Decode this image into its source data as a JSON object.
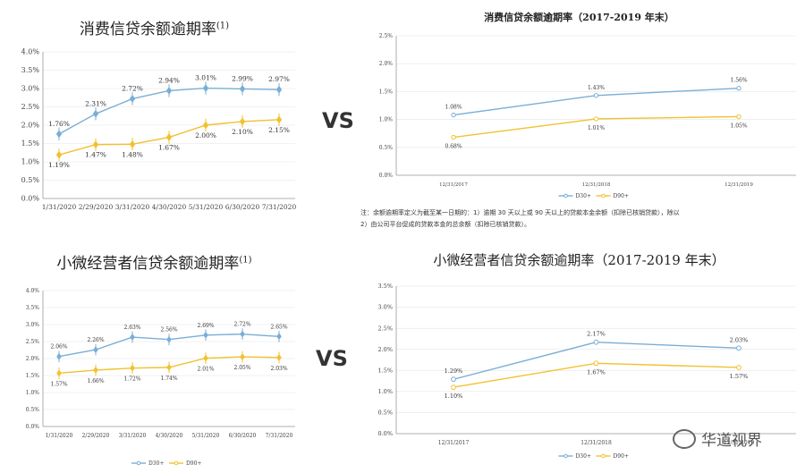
{
  "vs_label": "VS",
  "note": {
    "line1": "注：余额逾期率定义为截至某一日期的：1）逾期 30 天以上或 90 天以上的贷款本金余额（扣除已核销贷款），除以",
    "line2": "2）由公司平台促成的贷款本金的总余额（扣除已核销贷款）。"
  },
  "watermark": {
    "text": "华道视界",
    "icon": "wechat-icon"
  },
  "colors": {
    "d30": "#7aaed6",
    "d90": "#f2c12e",
    "axis": "#999999",
    "grid": "#e6e6e6"
  },
  "chart_data": [
    {
      "id": "c1",
      "type": "line",
      "title": "消费信贷余额逾期率",
      "title_sup": "(1)",
      "categories": [
        "1/31/2020",
        "2/29/2020",
        "3/31/2020",
        "4/30/2020",
        "5/31/2020",
        "6/30/2020",
        "7/31/2020"
      ],
      "yticks": [
        "0.0%",
        "0.5%",
        "1.0%",
        "1.5%",
        "2.0%",
        "2.5%",
        "3.0%",
        "3.5%",
        "4.0%"
      ],
      "ylim": [
        0,
        4
      ],
      "series": [
        {
          "key": "d30",
          "values": [
            1.76,
            2.31,
            2.72,
            2.94,
            3.01,
            2.99,
            2.97
          ],
          "labels": [
            "1.76%",
            "2.31%",
            "2.72%",
            "2.94%",
            "3.01%",
            "2.99%",
            "2.97%"
          ]
        },
        {
          "key": "d90",
          "values": [
            1.19,
            1.47,
            1.48,
            1.67,
            2.0,
            2.1,
            2.15
          ],
          "labels": [
            "1.19%",
            "1.47%",
            "1.48%",
            "1.67%",
            "2.00%",
            "2.10%",
            "2.15%"
          ]
        }
      ],
      "legend": []
    },
    {
      "id": "c2",
      "type": "line",
      "title": "消费信贷余额逾期率（2017-2019 年末）",
      "title_sup": "",
      "categories": [
        "12/31/2017",
        "12/31/2018",
        "12/31/2019"
      ],
      "yticks": [
        "0.0%",
        "0.5%",
        "1.0%",
        "1.5%",
        "2.0%",
        "2.5%"
      ],
      "ylim": [
        0,
        2.5
      ],
      "series": [
        {
          "key": "d30",
          "values": [
            1.08,
            1.43,
            1.56
          ],
          "labels": [
            "1.08%",
            "1.43%",
            "1.56%"
          ]
        },
        {
          "key": "d90",
          "values": [
            0.68,
            1.01,
            1.05
          ],
          "labels": [
            "0.68%",
            "1.01%",
            "1.05%"
          ]
        }
      ],
      "legend": [
        "D30+",
        "D90+"
      ]
    },
    {
      "id": "c3",
      "type": "line",
      "title": "小微经营者信贷余额逾期率",
      "title_sup": "(1)",
      "categories": [
        "1/31/2020",
        "2/29/2020",
        "3/31/2020",
        "4/30/2020",
        "5/31/2020",
        "6/30/2020",
        "7/31/2020"
      ],
      "yticks": [
        "0.0%",
        "0.5%",
        "1.0%",
        "1.5%",
        "2.0%",
        "2.5%",
        "3.0%",
        "3.5%",
        "4.0%"
      ],
      "ylim": [
        0,
        4
      ],
      "series": [
        {
          "key": "d30",
          "values": [
            2.06,
            2.26,
            2.63,
            2.56,
            2.69,
            2.72,
            2.65
          ],
          "labels": [
            "2.06%",
            "2.26%",
            "2.63%",
            "2.56%",
            "2.69%",
            "2.72%",
            "2.65%"
          ]
        },
        {
          "key": "d90",
          "values": [
            1.57,
            1.66,
            1.72,
            1.74,
            2.01,
            2.05,
            2.03
          ],
          "labels": [
            "1.57%",
            "1.66%",
            "1.72%",
            "1.74%",
            "2.01%",
            "2.05%",
            "2.03%"
          ]
        }
      ],
      "legend": [
        "D30+",
        "D90+"
      ]
    },
    {
      "id": "c4",
      "type": "line",
      "title": "小微经营者信贷余额逾期率（2017-2019 年末）",
      "title_sup": "",
      "categories": [
        "12/31/2017",
        "12/31/2018",
        "12/31/2019"
      ],
      "yticks": [
        "0.0%",
        "0.5%",
        "1.0%",
        "1.5%",
        "2.0%",
        "2.5%",
        "3.0%",
        "3.5%"
      ],
      "ylim": [
        0,
        3.5
      ],
      "series": [
        {
          "key": "d30",
          "values": [
            1.29,
            2.17,
            2.03
          ],
          "labels": [
            "1.29%",
            "2.17%",
            "2.03%"
          ]
        },
        {
          "key": "d90",
          "values": [
            1.1,
            1.67,
            1.57
          ],
          "labels": [
            "1.10%",
            "1.67%",
            "1.57%"
          ]
        }
      ],
      "legend": [
        "D30+",
        "D90+"
      ]
    }
  ]
}
